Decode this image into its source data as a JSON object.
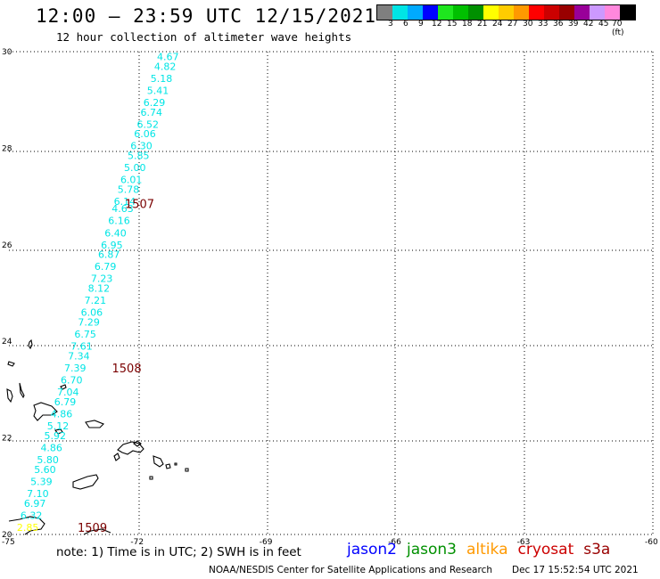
{
  "header": {
    "title": "12:00 – 23:59 UTC 12/15/2021",
    "subtitle": "12 hour collection of altimeter wave heights"
  },
  "colorbar": {
    "colors": [
      "#7f7f7f",
      "#00e5e5",
      "#00aaff",
      "#0000ff",
      "#1ee61e",
      "#00c000",
      "#009000",
      "#ffff00",
      "#ffcc00",
      "#ff9900",
      "#ff0000",
      "#cc0000",
      "#990000",
      "#990099",
      "#cc99ff",
      "#ff88dd",
      "#000000"
    ],
    "labels": [
      "3",
      "6",
      "9",
      "12",
      "15",
      "18",
      "21",
      "24",
      "27",
      "30",
      "33",
      "36",
      "39",
      "42",
      "45",
      "70 (ft)"
    ]
  },
  "axes": {
    "lon_ticks": [
      "-75",
      "-72",
      "-69",
      "-66",
      "-63",
      "-60"
    ],
    "lat_ticks": [
      "30",
      "28",
      "26",
      "24",
      "22",
      "20"
    ]
  },
  "measurements": [
    {
      "lat": 29.9,
      "value": "4.67",
      "color": "#00e5e5"
    },
    {
      "lat": 29.7,
      "value": "4.82",
      "color": "#00e5e5"
    },
    {
      "lat": 29.45,
      "value": "5.18",
      "color": "#00e5e5"
    },
    {
      "lat": 29.2,
      "value": "5.41",
      "color": "#00e5e5"
    },
    {
      "lat": 28.95,
      "value": "6.29",
      "color": "#00e5e5"
    },
    {
      "lat": 28.75,
      "value": "6.74",
      "color": "#00e5e5"
    },
    {
      "lat": 28.5,
      "value": "6.52",
      "color": "#00e5e5"
    },
    {
      "lat": 28.3,
      "value": "6.06",
      "color": "#00e5e5"
    },
    {
      "lat": 28.05,
      "value": "6.30",
      "color": "#00e5e5"
    },
    {
      "lat": 27.85,
      "value": "5.85",
      "color": "#00e5e5"
    },
    {
      "lat": 27.6,
      "value": "5.00",
      "color": "#00e5e5"
    },
    {
      "lat": 27.35,
      "value": "6.01",
      "color": "#00e5e5"
    },
    {
      "lat": 27.15,
      "value": "5.78",
      "color": "#00e5e5"
    },
    {
      "lat": 26.9,
      "value": "6.14",
      "color": "#00e5e5"
    },
    {
      "lat": 26.75,
      "value": "4.63",
      "color": "#00e5e5"
    },
    {
      "lat": 26.5,
      "value": "6.16",
      "color": "#00e5e5"
    },
    {
      "lat": 26.25,
      "value": "6.40",
      "color": "#00e5e5"
    },
    {
      "lat": 26.0,
      "value": "6.95",
      "color": "#00e5e5"
    },
    {
      "lat": 25.8,
      "value": "6.87",
      "color": "#00e5e5"
    },
    {
      "lat": 25.55,
      "value": "6.79",
      "color": "#00e5e5"
    },
    {
      "lat": 25.3,
      "value": "7.23",
      "color": "#00e5e5"
    },
    {
      "lat": 25.1,
      "value": "8.12",
      "color": "#00e5e5"
    },
    {
      "lat": 24.85,
      "value": "7.21",
      "color": "#00e5e5"
    },
    {
      "lat": 24.6,
      "value": "6.06",
      "color": "#00e5e5"
    },
    {
      "lat": 24.4,
      "value": "7.29",
      "color": "#00e5e5"
    },
    {
      "lat": 24.15,
      "value": "6.75",
      "color": "#00e5e5"
    },
    {
      "lat": 23.9,
      "value": "7.61",
      "color": "#00e5e5"
    },
    {
      "lat": 23.7,
      "value": "7.34",
      "color": "#00e5e5"
    },
    {
      "lat": 23.45,
      "value": "7.39",
      "color": "#00e5e5"
    },
    {
      "lat": 23.2,
      "value": "6.70",
      "color": "#00e5e5"
    },
    {
      "lat": 22.95,
      "value": "7.04",
      "color": "#00e5e5"
    },
    {
      "lat": 22.75,
      "value": "6.79",
      "color": "#00e5e5"
    },
    {
      "lat": 22.5,
      "value": "4.86",
      "color": "#00e5e5"
    },
    {
      "lat": 22.25,
      "value": "5.12",
      "color": "#00e5e5"
    },
    {
      "lat": 22.05,
      "value": "5.92",
      "color": "#00e5e5"
    },
    {
      "lat": 21.8,
      "value": "4.86",
      "color": "#00e5e5"
    },
    {
      "lat": 21.55,
      "value": "5.80",
      "color": "#00e5e5"
    },
    {
      "lat": 21.35,
      "value": "5.60",
      "color": "#00e5e5"
    },
    {
      "lat": 21.1,
      "value": "5.39",
      "color": "#00e5e5"
    },
    {
      "lat": 20.85,
      "value": "7.10",
      "color": "#00e5e5"
    },
    {
      "lat": 20.65,
      "value": "6.97",
      "color": "#00e5e5"
    },
    {
      "lat": 20.4,
      "value": "6.32",
      "color": "#00e5e5"
    },
    {
      "lat": 20.15,
      "value": "2.85",
      "color": "#ffff00"
    }
  ],
  "pass_labels": [
    {
      "text": "1507",
      "lat": 26.85,
      "lon": -72.3
    },
    {
      "text": "1508",
      "lat": 23.45,
      "lon": -72.6
    },
    {
      "text": "1509",
      "lat": 20.15,
      "lon": -73.4
    }
  ],
  "footer": {
    "note": "note: 1) Time is in UTC; 2) SWH is in feet",
    "satellites": [
      {
        "name": "jason2",
        "color": "#0000ff"
      },
      {
        "name": "jason3",
        "color": "#009000"
      },
      {
        "name": "altika",
        "color": "#ff9900"
      },
      {
        "name": "cryosat",
        "color": "#cc0000"
      },
      {
        "name": "s3a",
        "color": "#990000"
      }
    ],
    "credit_org": "NOAA/NESDIS Center for Satellite Applications and Research",
    "credit_time": "Dec 17 15:52:54 UTC 2021"
  }
}
